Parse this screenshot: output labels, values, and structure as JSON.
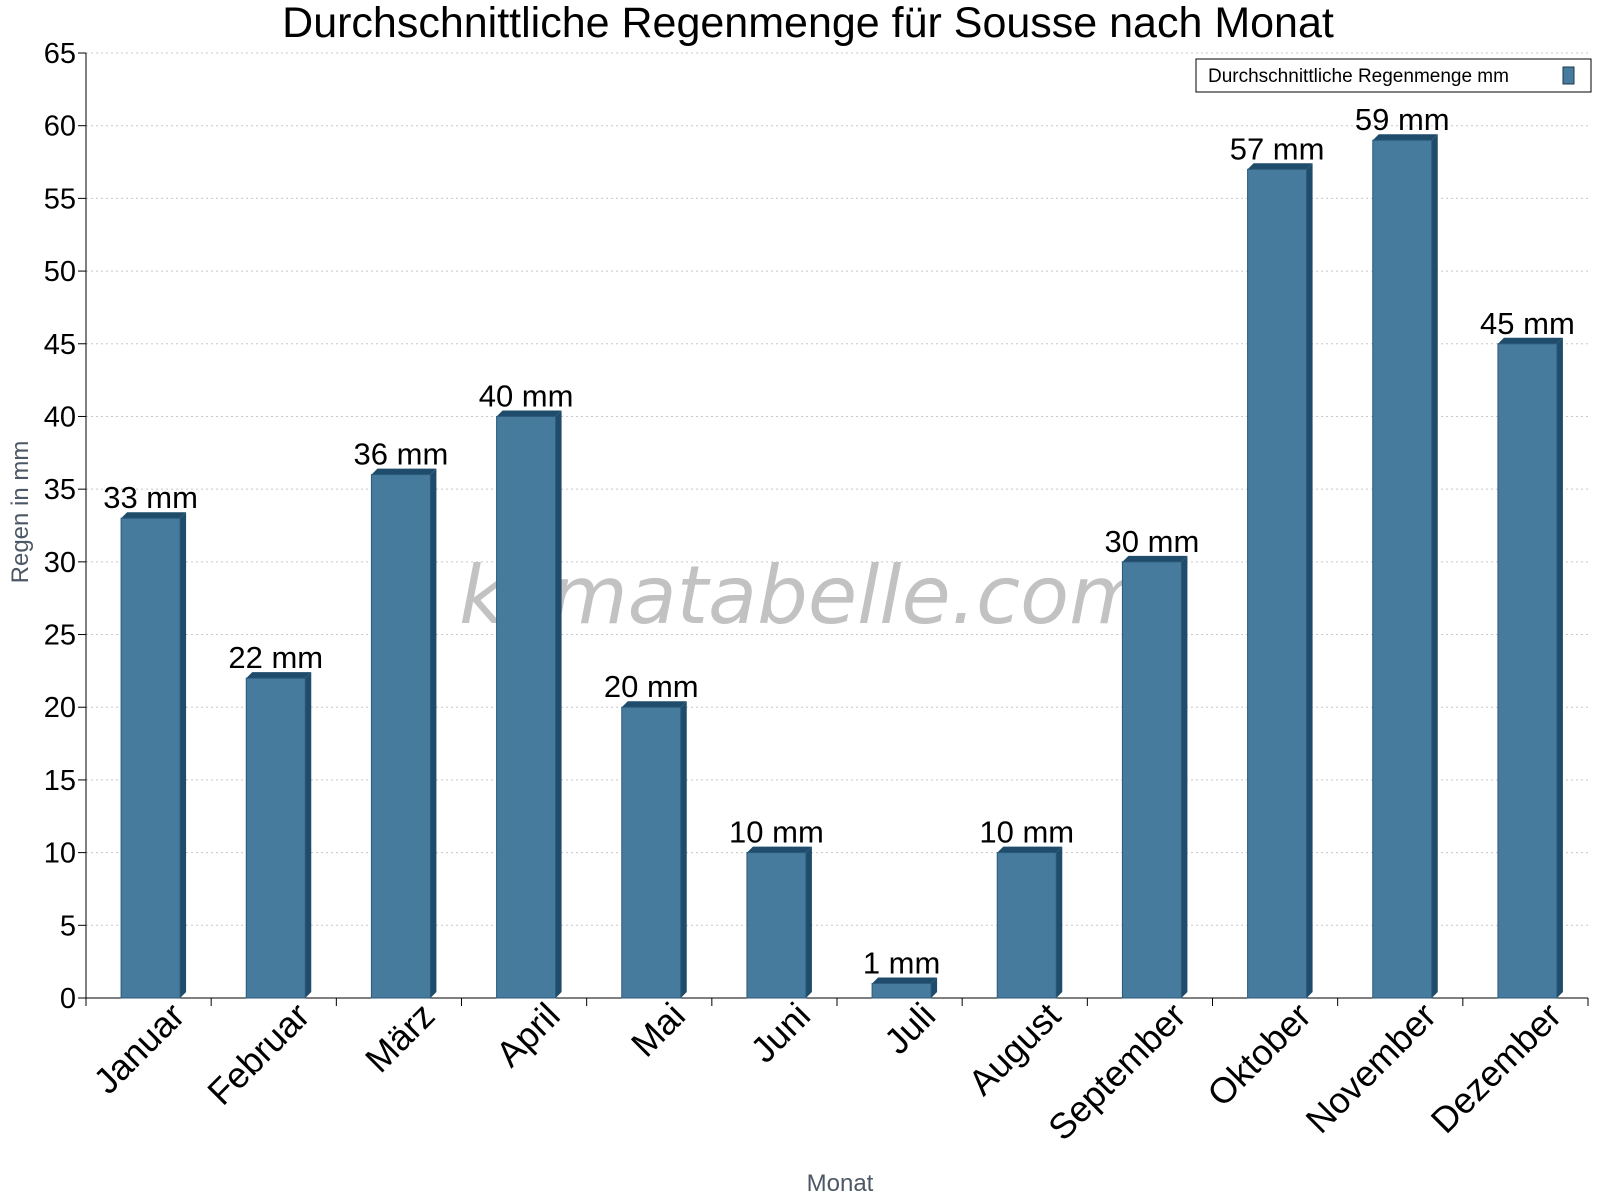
{
  "chart_data": {
    "type": "bar",
    "title": "Durchschnittliche Regenmenge für Sousse nach Monat",
    "xlabel": "Monat",
    "ylabel": "Regen in mm",
    "ylim": [
      0,
      65
    ],
    "ytick_step": 5,
    "grid": "horizontal dotted",
    "legend_position": "top-right",
    "categories": [
      "Januar",
      "Februar",
      "März",
      "April",
      "Mai",
      "Juni",
      "Juli",
      "August",
      "September",
      "Oktober",
      "November",
      "Dezember"
    ],
    "series": [
      {
        "name": "Durchschnittliche Regenmenge mm",
        "values": [
          33,
          22,
          36,
          40,
          20,
          10,
          1,
          10,
          30,
          57,
          59,
          45
        ],
        "value_labels": [
          "33 mm",
          "22 mm",
          "36 mm",
          "40 mm",
          "20 mm",
          "10 mm",
          "1 mm",
          "10 mm",
          "30 mm",
          "57 mm",
          "59 mm",
          "45 mm"
        ],
        "color": "#467b9e",
        "side_color": "#1f4c6b"
      }
    ],
    "watermark": "klimatabelle.com"
  }
}
